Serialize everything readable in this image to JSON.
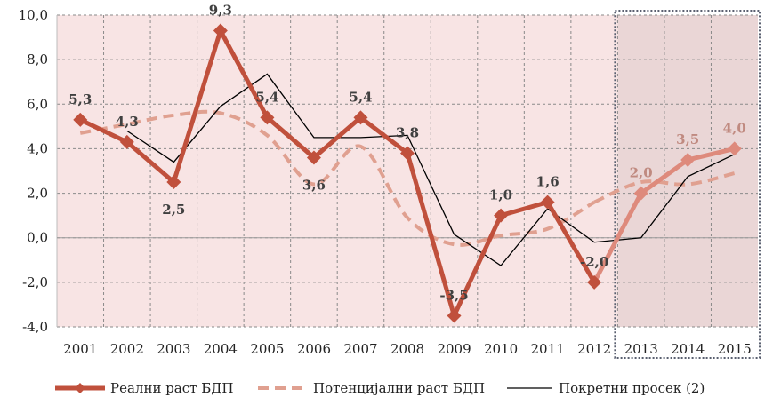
{
  "chart_data": {
    "type": "line",
    "title": "",
    "xlabel": "",
    "ylabel": "",
    "categories": [
      "2001",
      "2002",
      "2003",
      "2004",
      "2005",
      "2006",
      "2007",
      "2008",
      "2009",
      "2010",
      "2011",
      "2012",
      "2013",
      "2014",
      "2015"
    ],
    "ylim": [
      -4,
      10
    ],
    "yticks": [
      "-4,0",
      "-2,0",
      "0,0",
      "2,0",
      "4,0",
      "6,0",
      "8,0",
      "10,0"
    ],
    "grid": true,
    "legend_position": "bottom",
    "forecast_from": "2013",
    "colors": {
      "real": "#c0503c",
      "real_forecast": "#de8a7c",
      "potential": "#e0a090",
      "moving": "#000000",
      "actual_bg": "#f8e4e4",
      "forecast_bg": "#ead6d6"
    },
    "series": [
      {
        "name": "Реални раст БДП",
        "style": "thick-line-diamond",
        "values": [
          5.3,
          4.3,
          2.5,
          9.3,
          5.4,
          3.6,
          5.4,
          3.8,
          -3.5,
          1.0,
          1.6,
          -2.0,
          2.0,
          3.5,
          4.0
        ],
        "labels": [
          "5,3",
          "4,3",
          "2,5",
          "9,3",
          "5,4",
          "3,6",
          "5,4",
          "3,8",
          "-3,5",
          "1,0",
          "1,6",
          "-2,0",
          "2,0",
          "3,5",
          "4,0"
        ]
      },
      {
        "name": "Потенцијални раст БДП",
        "style": "dashed",
        "values": [
          4.7,
          5.1,
          5.5,
          5.6,
          4.6,
          2.4,
          4.1,
          0.9,
          -0.3,
          0.1,
          0.4,
          1.6,
          2.5,
          2.4,
          2.9
        ]
      },
      {
        "name": "Покретни просек (2)",
        "style": "thin-line",
        "values": [
          null,
          4.8,
          3.4,
          5.9,
          7.35,
          4.5,
          4.5,
          4.6,
          0.15,
          -1.25,
          1.3,
          -0.2,
          0.0,
          2.75,
          3.75
        ]
      }
    ]
  }
}
